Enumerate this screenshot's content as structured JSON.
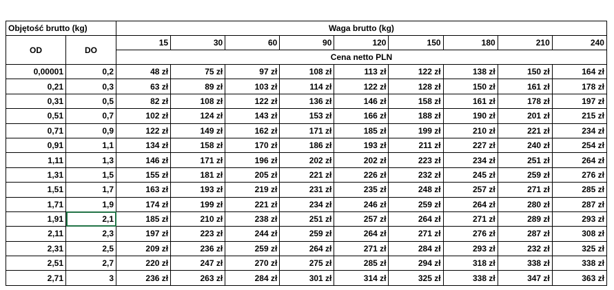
{
  "header": {
    "volume_label": "Objętość brutto (kg)",
    "weight_label": "Waga brutto (kg)",
    "od": "OD",
    "do": "DO",
    "weights": [
      15,
      30,
      60,
      90,
      120,
      150,
      180,
      210,
      240
    ],
    "price_label": "Cena netto PLN"
  },
  "table": {
    "rows": [
      [
        "0,00001",
        "0,2",
        "48 zł",
        "75 zł",
        "97 zł",
        "108 zł",
        "113 zł",
        "122 zł",
        "138 zł",
        "150 zł",
        "164 zł"
      ],
      [
        "0,21",
        "0,3",
        "63 zł",
        "89 zł",
        "103 zł",
        "114 zł",
        "122 zł",
        "128 zł",
        "150 zł",
        "161 zł",
        "178 zł"
      ],
      [
        "0,31",
        "0,5",
        "82 zł",
        "108 zł",
        "122 zł",
        "136 zł",
        "146 zł",
        "158 zł",
        "161 zł",
        "178 zł",
        "197 zł"
      ],
      [
        "0,51",
        "0,7",
        "102 zł",
        "124 zł",
        "143 zł",
        "153 zł",
        "166 zł",
        "188 zł",
        "190 zł",
        "201 zł",
        "215 zł"
      ],
      [
        "0,71",
        "0,9",
        "122 zł",
        "149 zł",
        "162 zł",
        "171 zł",
        "185 zł",
        "199 zł",
        "210 zł",
        "221 zł",
        "234 zł"
      ],
      [
        "0,91",
        "1,1",
        "134 zł",
        "158 zł",
        "170 zł",
        "186 zł",
        "193 zł",
        "211 zł",
        "227 zł",
        "240 zł",
        "254 zł"
      ],
      [
        "1,11",
        "1,3",
        "146 zł",
        "171 zł",
        "196 zł",
        "202 zł",
        "202 zł",
        "223 zł",
        "234 zł",
        "251 zł",
        "264 zł"
      ],
      [
        "1,31",
        "1,5",
        "155 zł",
        "181 zł",
        "205 zł",
        "221 zł",
        "226 zł",
        "232 zł",
        "245 zł",
        "259 zł",
        "276 zł"
      ],
      [
        "1,51",
        "1,7",
        "163 zł",
        "193 zł",
        "219 zł",
        "231 zł",
        "235 zł",
        "248 zł",
        "257 zł",
        "271 zł",
        "285 zł"
      ],
      [
        "1,71",
        "1,9",
        "174 zł",
        "199 zł",
        "221 zł",
        "234 zł",
        "246 zł",
        "259 zł",
        "264 zł",
        "280 zł",
        "287 zł"
      ],
      [
        "1,91",
        "2,1",
        "185 zł",
        "210 zł",
        "238 zł",
        "251 zł",
        "257 zł",
        "264 zł",
        "271 zł",
        "289 zł",
        "293 zł"
      ],
      [
        "2,11",
        "2,3",
        "197 zł",
        "223 zł",
        "244 zł",
        "259 zł",
        "264 zł",
        "271 zł",
        "276 zł",
        "287 zł",
        "308 zł"
      ],
      [
        "2,31",
        "2,5",
        "209 zł",
        "236 zł",
        "259 zł",
        "264 zł",
        "271 zł",
        "284 zł",
        "293 zł",
        "232 zł",
        "325 zł"
      ],
      [
        "2,51",
        "2,7",
        "220 zł",
        "247 zł",
        "270 zł",
        "275 zł",
        "285 zł",
        "294 zł",
        "318 zł",
        "338 zł",
        "338 zł"
      ],
      [
        "2,71",
        "3",
        "236 zł",
        "263 zł",
        "284 zł",
        "301 zł",
        "314 zł",
        "325 zł",
        "338 zł",
        "347 zł",
        "363 zł"
      ]
    ]
  }
}
